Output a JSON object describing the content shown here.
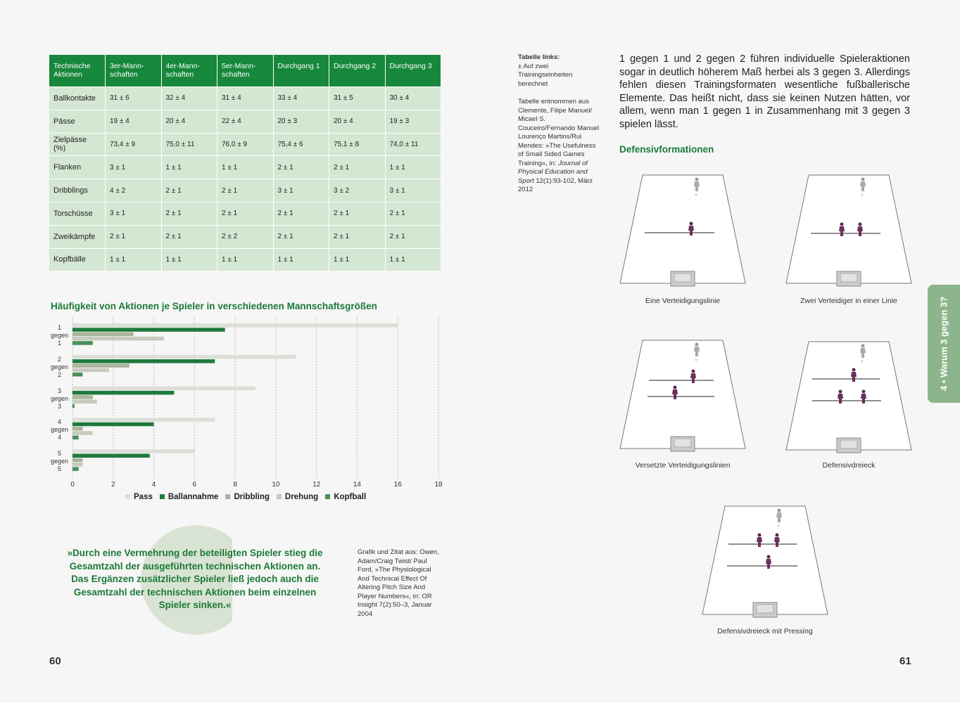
{
  "table": {
    "header": [
      "Technische Aktionen",
      "3er-Mann-schaften",
      "4er-Mann-schaften",
      "5er-Mann-schaften",
      "Durchgang 1",
      "Durchgang 2",
      "Durchgang 3"
    ],
    "rows": [
      [
        "Ballkontakte",
        "31 ± 6",
        "32 ± 4",
        "31 ± 4",
        "33 ± 4",
        "31 ± 5",
        "30 ± 4"
      ],
      [
        "Pässe",
        "19 ± 4",
        "20 ± 4",
        "22 ± 4",
        "20 ± 3",
        "20 ± 4",
        "19 ± 3"
      ],
      [
        "Zielpässe (%)",
        "73,4 ± 9",
        "75,0 ± 11",
        "76,0 ± 9",
        "75,4 ± 6",
        "75,1 ± 8",
        "74,0 ± 11"
      ],
      [
        "Flanken",
        "3 ± 1",
        "1 ± 1",
        "1 ± 1",
        "2 ± 1",
        "2 ± 1",
        "1 ± 1"
      ],
      [
        "Dribblings",
        "4 ± 2",
        "2 ± 1",
        "2 ± 1",
        "3 ± 1",
        "3 ± 2",
        "3 ± 1"
      ],
      [
        "Torschüsse",
        "3 ± 1",
        "2 ± 1",
        "2 ± 1",
        "2 ± 1",
        "2 ± 1",
        "2 ± 1"
      ],
      [
        "Zweikämpfe",
        "2 ± 1",
        "2 ± 1",
        "2 ± 2",
        "2 ± 1",
        "2 ± 1",
        "2 ± 1"
      ],
      [
        "Kopfbälle",
        "1 ± 1",
        "1 ± 1",
        "1 ± 1",
        "1 ± 1",
        "1 ± 1",
        "1 ± 1"
      ]
    ]
  },
  "chart_data": {
    "type": "bar",
    "orientation": "horizontal",
    "title": "Häufigkeit von Aktionen je Spieler in verschiedenen Mannschaftsgrößen",
    "categories": [
      "1 gegen 1",
      "2 gegen 2",
      "3 gegen 3",
      "4 gegen 4",
      "5 gegen 5"
    ],
    "series": [
      {
        "name": "Pass",
        "color": "#dcdfd7",
        "values": [
          16,
          11,
          9,
          7,
          6
        ]
      },
      {
        "name": "Ballannahme",
        "color": "#1e7a3c",
        "values": [
          7.5,
          7,
          5,
          4,
          3.8
        ]
      },
      {
        "name": "Dribbling",
        "color": "#a9b59c",
        "values": [
          3,
          2.8,
          1,
          0.5,
          0.5
        ]
      },
      {
        "name": "Drehung",
        "color": "#c6cbbd",
        "values": [
          4.5,
          1.8,
          1.2,
          1,
          0.5
        ]
      },
      {
        "name": "Kopfball",
        "color": "#4a8f5a",
        "values": [
          1,
          0.5,
          0.1,
          0.3,
          0.3
        ]
      }
    ],
    "xlim": [
      0,
      18
    ],
    "xticks": [
      0,
      2,
      4,
      6,
      8,
      10,
      12,
      14,
      16,
      18
    ],
    "grid": true
  },
  "quote": "»Durch eine Vermehrung der beteiligten Spieler stieg die Gesamtzahl der ausgeführten technischen Aktionen an. Das Ergänzen zusätzlicher Spieler ließ jedoch auch die Gesamtzahl der technischen Aktionen beim einzelnen Spieler sinken.«",
  "quote_source": "Grafik und Zitat aus: Owen, Adam/Craig Twist/ Paul Ford, »The Physiological And Technical Effect Of Altering Pitch Size And Player Numbers«, in: OR Insight 7(2):50–3, Januar 2004",
  "table_note": {
    "label": "Tabelle links:",
    "text": "± Auf zwei Trainingseinheiten berechnet",
    "source_pre": "Tabelle entnommen aus Clemente, Filipe Manuel/ Micael S. Couceiro/Fernando Manuel Lourenço Martins/Rui Mendes: »The Usefulness of Small Sided Games Training«, in:",
    "source_journal": "Journal of Physical Education and Sport",
    "source_post": "12(1):93-102, März 2012"
  },
  "body_text": "1 gegen 1 und 2 gegen 2 führen individuelle Spieleraktionen sogar in deutlich höherem Maß herbei als 3 gegen 3. Allerdings fehlen diesen Trainingsformaten wesentliche fußballerische Elemente. Das heißt nicht, dass sie keinen Nutzen hätten, vor allem, wenn man 1 gegen 1 in Zusammenhang mit 3 gegen 3 spielen lässt.",
  "section_title": "Defensivformationen",
  "diagrams": [
    {
      "caption": "Eine Verteidigungslinie"
    },
    {
      "caption": "Zwei Verteidiger in einer Linie"
    },
    {
      "caption": "Versetzte Verteidigungslinien"
    },
    {
      "caption": "Defensivdreieck"
    },
    {
      "caption": "Defensivdreieck mit Pressing"
    }
  ],
  "side_tab": "4 • Warum 3 gegen 3?",
  "page_numbers": {
    "left": "60",
    "right": "61"
  }
}
